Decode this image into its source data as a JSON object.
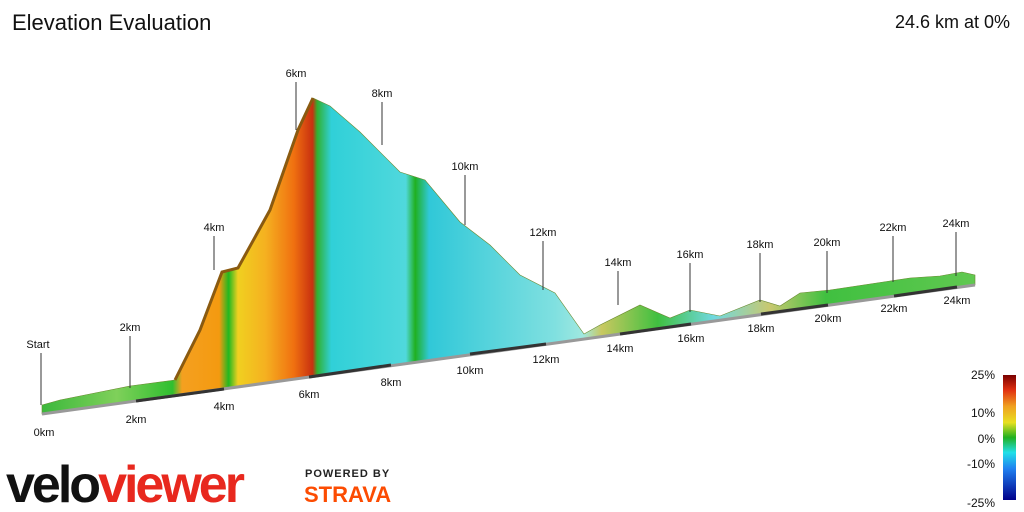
{
  "header": {
    "title": "Elevation Evaluation",
    "summary": "24.6 km at 0%"
  },
  "profile": {
    "upper_markers": [
      "Start",
      "2km",
      "4km",
      "6km",
      "8km",
      "10km",
      "12km",
      "14km",
      "16km",
      "18km",
      "20km",
      "22km",
      "24km"
    ],
    "lower_markers": [
      "0km",
      "2km",
      "4km",
      "6km",
      "8km",
      "10km",
      "12km",
      "14km",
      "16km",
      "18km",
      "20km",
      "22km",
      "24km"
    ]
  },
  "gradient_legend": [
    "25%",
    "10%",
    "0%",
    "-10%",
    "-25%"
  ],
  "branding": {
    "logo_part1": "velo",
    "logo_part2": "viewer",
    "powered_by": "POWERED BY",
    "partner": "STRAVA"
  }
}
